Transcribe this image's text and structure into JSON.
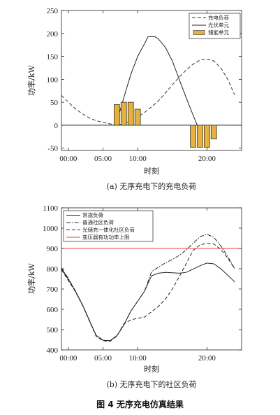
{
  "figure": {
    "title": "图 4 无序充电仿真结果"
  },
  "chart_data": [
    {
      "type": "line",
      "caption": "(a) 无序充电下的充电负荷",
      "xlabel": "时刻",
      "ylabel": "功率/kW",
      "xlim": [
        -1,
        25
      ],
      "ylim": [
        -55,
        250
      ],
      "xticks": [
        {
          "value": 0,
          "label": "00:00"
        },
        {
          "value": 5,
          "label": "05:00"
        },
        {
          "value": 10,
          "label": "10:00"
        },
        {
          "value": 20,
          "label": "20:00"
        }
      ],
      "yticks": [
        -50,
        0,
        50,
        100,
        150,
        200,
        250
      ],
      "grid": false,
      "legend_position": "top-right",
      "series": [
        {
          "name": "充电负荷",
          "kind": "line",
          "style": "dashed",
          "color": "#333333",
          "x": [
            -1,
            0,
            1,
            2,
            3,
            4,
            5,
            6,
            7,
            8,
            9,
            10,
            11,
            12,
            13,
            14,
            15,
            16,
            17,
            18,
            19,
            20,
            21,
            22,
            23,
            24
          ],
          "y": [
            65,
            50,
            36,
            25,
            16,
            10,
            6,
            3,
            1,
            3,
            10,
            18,
            28,
            40,
            53,
            70,
            88,
            105,
            120,
            133,
            142,
            144,
            140,
            125,
            100,
            66
          ]
        },
        {
          "name": "光伏单元",
          "kind": "line",
          "style": "solid",
          "color": "#222222",
          "x": [
            6.5,
            7,
            8,
            9,
            10,
            11,
            11.5,
            12.5,
            13,
            14,
            15,
            16,
            17,
            18,
            18.6
          ],
          "y": [
            0,
            8,
            60,
            110,
            150,
            178,
            193,
            193,
            188,
            170,
            140,
            100,
            60,
            22,
            0
          ]
        },
        {
          "name": "储能单元",
          "kind": "bar",
          "color": "#E6B23C",
          "edge": "#333333",
          "x": [
            7,
            8,
            9,
            10,
            18,
            19,
            20,
            21
          ],
          "y": [
            45,
            50,
            50,
            35,
            -48,
            -48,
            -48,
            -30
          ]
        }
      ]
    },
    {
      "type": "line",
      "caption": "(b) 无序充电下的社区负荷",
      "xlabel": "时刻",
      "ylabel": "功率/kW",
      "xlim": [
        -1,
        25
      ],
      "ylim": [
        400,
        1100
      ],
      "xticks": [
        {
          "value": 0,
          "label": "00:00"
        },
        {
          "value": 5,
          "label": "05:00"
        },
        {
          "value": 10,
          "label": "10:00"
        },
        {
          "value": 20,
          "label": "20:00"
        }
      ],
      "yticks": [
        400,
        500,
        600,
        700,
        800,
        900,
        1000,
        1100
      ],
      "grid": false,
      "legend_position": "top-left",
      "x": [
        -1,
        0,
        1,
        2,
        3,
        4,
        5,
        6,
        7,
        8,
        9,
        10,
        11,
        12,
        13,
        14,
        15,
        16,
        17,
        18,
        19,
        20,
        21,
        22,
        23,
        24
      ],
      "series": [
        {
          "name": "常规负荷",
          "kind": "line",
          "style": "solid",
          "color": "#222222",
          "y": [
            800,
            748,
            690,
            625,
            548,
            472,
            448,
            445,
            470,
            522,
            590,
            640,
            690,
            765,
            778,
            782,
            780,
            778,
            782,
            798,
            815,
            828,
            824,
            800,
            768,
            735
          ]
        },
        {
          "name": "普通社区负荷",
          "kind": "line",
          "style": "dash-dot",
          "color": "#222222",
          "y": [
            805,
            752,
            692,
            625,
            548,
            472,
            448,
            445,
            470,
            522,
            590,
            640,
            690,
            785,
            808,
            828,
            846,
            866,
            892,
            925,
            958,
            970,
            955,
            912,
            860,
            800
          ]
        },
        {
          "name": "光储充一体化社区负荷",
          "kind": "line",
          "style": "dashed",
          "color": "#222222",
          "y": [
            795,
            742,
            688,
            622,
            545,
            468,
            445,
            442,
            468,
            528,
            548,
            556,
            562,
            588,
            615,
            650,
            700,
            760,
            825,
            890,
            918,
            925,
            922,
            895,
            852,
            800
          ]
        },
        {
          "name": "变压器有功功率上限",
          "kind": "hline",
          "color": "#E8403A",
          "y": 900
        }
      ]
    }
  ]
}
